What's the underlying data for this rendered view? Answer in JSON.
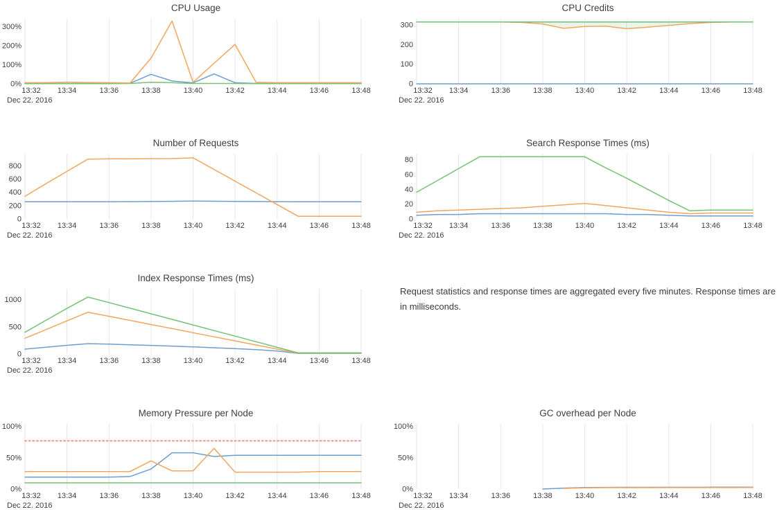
{
  "note": {
    "text": "Request statistics and response times are aggregated every five minutes. Response times are in milliseconds."
  },
  "colors": {
    "blue": "#6d9ecf",
    "orange": "#f3a55c",
    "green": "#74c274",
    "red_dashed": "#f09393",
    "grid": "#e6e6e6",
    "tick_text": "#3f3f3f",
    "title_text": "#3f3f3f",
    "credits_fill": "rgba(116,194,116,0.16)"
  },
  "x_axis": {
    "tick_labels": [
      "13:32",
      "13:34",
      "13:36",
      "13:38",
      "13:40",
      "13:42",
      "13:44",
      "13:46",
      "13:48"
    ],
    "tick_minutes": [
      0,
      2,
      4,
      6,
      8,
      10,
      12,
      14,
      16
    ],
    "minutes_span": 16,
    "date_label": "Dec 22. 2016"
  },
  "chart_data": [
    {
      "type": "line",
      "title": "CPU Usage",
      "ylim": [
        0,
        342
      ],
      "yticks": [
        {
          "value": 0,
          "label": "0%"
        },
        {
          "value": 100,
          "label": "100%"
        },
        {
          "value": 200,
          "label": "200%"
        },
        {
          "value": 300,
          "label": "300%"
        }
      ],
      "series": [
        {
          "name": "blue",
          "color_key": "blue",
          "values": [
            2,
            2,
            2,
            2,
            2,
            3,
            50,
            15,
            5,
            52,
            6,
            2,
            2,
            2,
            2,
            2,
            2
          ]
        },
        {
          "name": "green",
          "color_key": "green",
          "values": [
            1,
            1,
            1,
            1,
            1,
            2,
            8,
            6,
            2,
            2,
            2,
            1,
            1,
            1,
            1,
            1,
            1
          ]
        },
        {
          "name": "orange",
          "color_key": "orange",
          "values": [
            6,
            6,
            9,
            7,
            6,
            4,
            135,
            330,
            8,
            108,
            207,
            8,
            6,
            6,
            6,
            6,
            6
          ]
        }
      ]
    },
    {
      "type": "line",
      "title": "CPU Credits",
      "ylim": [
        0,
        332
      ],
      "yticks": [
        {
          "value": 0,
          "label": "0"
        },
        {
          "value": 100,
          "label": "100"
        },
        {
          "value": 200,
          "label": "200"
        },
        {
          "value": 300,
          "label": "300"
        }
      ],
      "fill_between": {
        "upper": "green",
        "lower": "orange",
        "color_key": "credits_fill"
      },
      "series": [
        {
          "name": "blue",
          "color_key": "blue",
          "values": [
            0,
            0,
            0,
            0,
            0,
            0,
            0,
            0,
            0,
            0,
            0,
            0,
            0,
            0,
            0,
            0,
            0
          ]
        },
        {
          "name": "orange",
          "color_key": "orange",
          "values": [
            315,
            315,
            315,
            315,
            315,
            313,
            305,
            283,
            292,
            294,
            281,
            289,
            298,
            307,
            313,
            315,
            315
          ]
        },
        {
          "name": "green",
          "color_key": "green",
          "values": [
            315,
            315,
            315,
            315,
            315,
            315,
            315,
            315,
            315,
            315,
            315,
            315,
            315,
            315,
            315,
            315,
            315
          ]
        }
      ]
    },
    {
      "type": "line",
      "title": "Number of Requests",
      "ylim": [
        0,
        980
      ],
      "yticks": [
        {
          "value": 0,
          "label": "0"
        },
        {
          "value": 200,
          "label": "200"
        },
        {
          "value": 400,
          "label": "400"
        },
        {
          "value": 600,
          "label": "600"
        },
        {
          "value": 800,
          "label": "800"
        }
      ],
      "series": [
        {
          "name": "blue",
          "color_key": "blue",
          "values": [
            257,
            257,
            257,
            257,
            258,
            260,
            262,
            265,
            268,
            266,
            264,
            262,
            260,
            258,
            257,
            257,
            257
          ]
        },
        {
          "name": "orange",
          "color_key": "orange",
          "values": [
            340,
            530,
            715,
            900,
            905,
            905,
            907,
            908,
            920,
            744,
            568,
            392,
            216,
            40,
            40,
            40,
            40
          ]
        }
      ]
    },
    {
      "type": "line",
      "title": "Search Response Times (ms)",
      "ylim": [
        0,
        88
      ],
      "yticks": [
        {
          "value": 0,
          "label": "0"
        },
        {
          "value": 20,
          "label": "20"
        },
        {
          "value": 40,
          "label": "40"
        },
        {
          "value": 60,
          "label": "60"
        },
        {
          "value": 80,
          "label": "80"
        }
      ],
      "series": [
        {
          "name": "blue",
          "color_key": "blue",
          "values": [
            5,
            6,
            6,
            7,
            7,
            7,
            7,
            7,
            7,
            7,
            6,
            6,
            5,
            4,
            4,
            4,
            4
          ]
        },
        {
          "name": "orange",
          "color_key": "orange",
          "values": [
            9,
            11,
            12,
            13,
            14,
            15,
            17,
            19,
            21,
            18,
            15,
            12,
            9,
            7,
            8,
            8,
            8
          ]
        },
        {
          "name": "green",
          "color_key": "green",
          "values": [
            36,
            52,
            68,
            84,
            84,
            84,
            84,
            84,
            84,
            69,
            55,
            40,
            25,
            11,
            12,
            12,
            12
          ]
        }
      ]
    },
    {
      "type": "line",
      "title": "Index Response Times (ms)",
      "ylim": [
        0,
        1200
      ],
      "yticks": [
        {
          "value": 0,
          "label": "0"
        },
        {
          "value": 500,
          "label": "500"
        },
        {
          "value": 1000,
          "label": "1000"
        }
      ],
      "series": [
        {
          "name": "blue",
          "color_key": "blue",
          "values": [
            90,
            125,
            160,
            190,
            182,
            170,
            158,
            145,
            130,
            115,
            98,
            80,
            55,
            12,
            12,
            12,
            12
          ]
        },
        {
          "name": "orange",
          "color_key": "orange",
          "values": [
            290,
            450,
            610,
            770,
            694,
            619,
            543,
            468,
            392,
            317,
            241,
            166,
            90,
            15,
            15,
            15,
            15
          ]
        },
        {
          "name": "green",
          "color_key": "green",
          "values": [
            400,
            620,
            840,
            1050,
            947,
            844,
            741,
            638,
            535,
            432,
            329,
            226,
            123,
            20,
            20,
            20,
            20
          ]
        }
      ]
    },
    {
      "type": "line",
      "title": "Memory Pressure per Node",
      "ylim": [
        0,
        104
      ],
      "yticks": [
        {
          "value": 0,
          "label": "0%"
        },
        {
          "value": 50,
          "label": "50%"
        },
        {
          "value": 100,
          "label": "100%"
        }
      ],
      "series": [
        {
          "name": "threshold",
          "color_key": "red_dashed",
          "dashed": true,
          "values": [
            77,
            77,
            77,
            77,
            77,
            77,
            77,
            77,
            77,
            77,
            77,
            77,
            77,
            77,
            77,
            77,
            77
          ]
        },
        {
          "name": "green",
          "color_key": "green",
          "values": [
            10,
            10,
            10,
            10,
            10,
            10,
            10,
            10,
            10,
            10,
            10,
            10,
            10,
            10,
            10,
            10,
            10
          ]
        },
        {
          "name": "blue",
          "color_key": "blue",
          "values": [
            19,
            19,
            19,
            19,
            19,
            20,
            32,
            58,
            58,
            52,
            54,
            54,
            54,
            54,
            54,
            54,
            54
          ]
        },
        {
          "name": "orange",
          "color_key": "orange",
          "values": [
            28,
            28,
            28,
            28,
            28,
            28,
            45,
            29,
            29,
            65,
            27,
            27,
            27,
            27,
            28,
            28,
            28
          ]
        }
      ]
    },
    {
      "type": "line",
      "title": "GC overhead per Node",
      "ylim": [
        0,
        104
      ],
      "yticks": [
        {
          "value": 0,
          "label": "0%"
        },
        {
          "value": 50,
          "label": "50%"
        },
        {
          "value": 100,
          "label": "100%"
        }
      ],
      "series": [
        {
          "name": "blue",
          "color_key": "blue",
          "values": [
            null,
            null,
            null,
            null,
            null,
            null,
            0,
            1.5,
            2.5,
            2.7,
            2.8,
            2.8,
            2.9,
            2.9,
            3,
            3,
            3
          ]
        },
        {
          "name": "orange",
          "color_key": "orange",
          "values": [
            null,
            null,
            null,
            null,
            null,
            null,
            null,
            1,
            2,
            2.2,
            2.2,
            2.2,
            2.3,
            2.3,
            2.3,
            2.3,
            2.4
          ]
        }
      ]
    }
  ]
}
